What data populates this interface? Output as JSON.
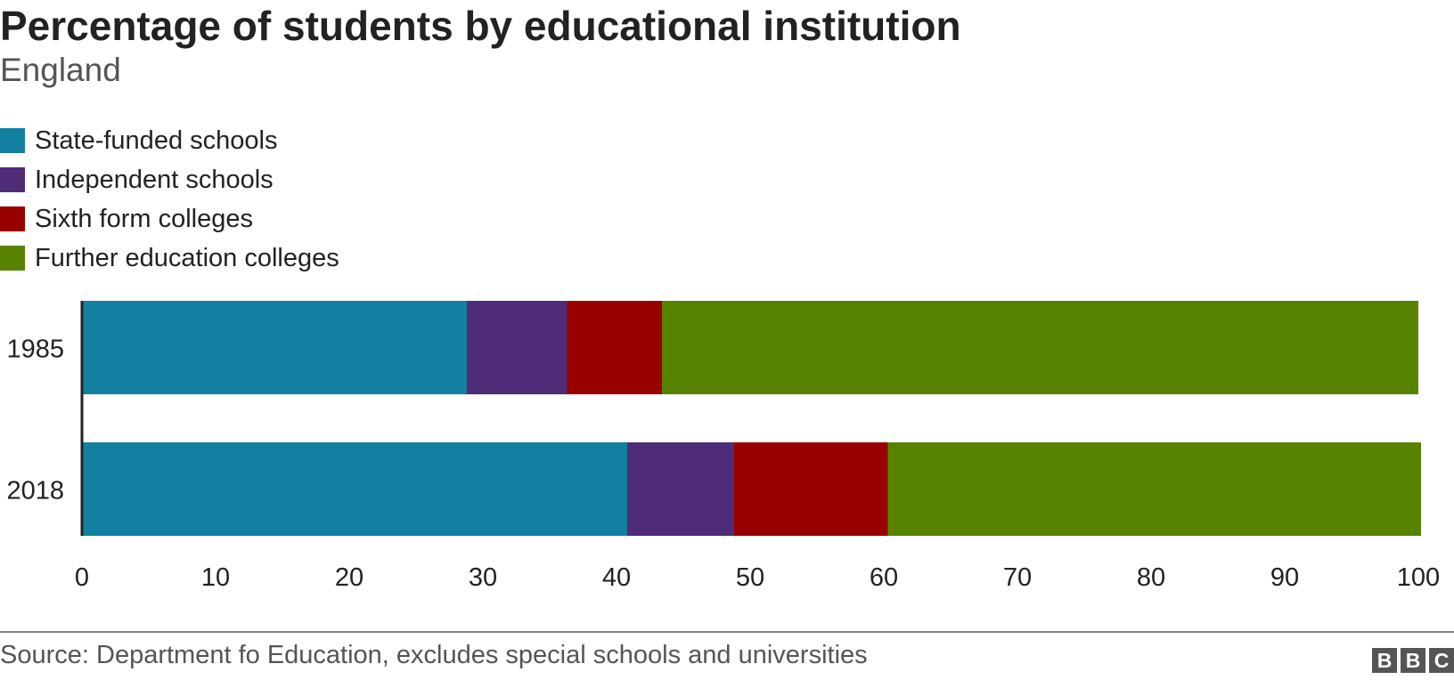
{
  "title": "Percentage of students by educational institution",
  "subtitle": "England",
  "legend": [
    {
      "label": "State-funded schools",
      "color": "#1380a1"
    },
    {
      "label": "Independent schools",
      "color": "#4f2c78"
    },
    {
      "label": "Sixth form colleges",
      "color": "#990000"
    },
    {
      "label": "Further education colleges",
      "color": "#588300"
    }
  ],
  "source": "Source: Department fo Education, excludes special schools and universities",
  "logo_letters": [
    "B",
    "B",
    "C"
  ],
  "chart_data": {
    "type": "bar",
    "orientation": "horizontal",
    "stacked": true,
    "categories": [
      "1985",
      "2018"
    ],
    "series": [
      {
        "name": "State-funded schools",
        "color": "#1380a1",
        "values": [
          28.8,
          40.8
        ]
      },
      {
        "name": "Independent schools",
        "color": "#4f2c78",
        "values": [
          7.5,
          8.0
        ]
      },
      {
        "name": "Sixth form colleges",
        "color": "#990000",
        "values": [
          7.1,
          11.5
        ]
      },
      {
        "name": "Further education colleges",
        "color": "#588300",
        "values": [
          56.6,
          39.9
        ]
      }
    ],
    "xlim": [
      0,
      100
    ],
    "xticks": [
      0,
      10,
      20,
      30,
      40,
      50,
      60,
      70,
      80,
      90,
      100
    ],
    "grid": false,
    "legend_position": "top-left"
  }
}
